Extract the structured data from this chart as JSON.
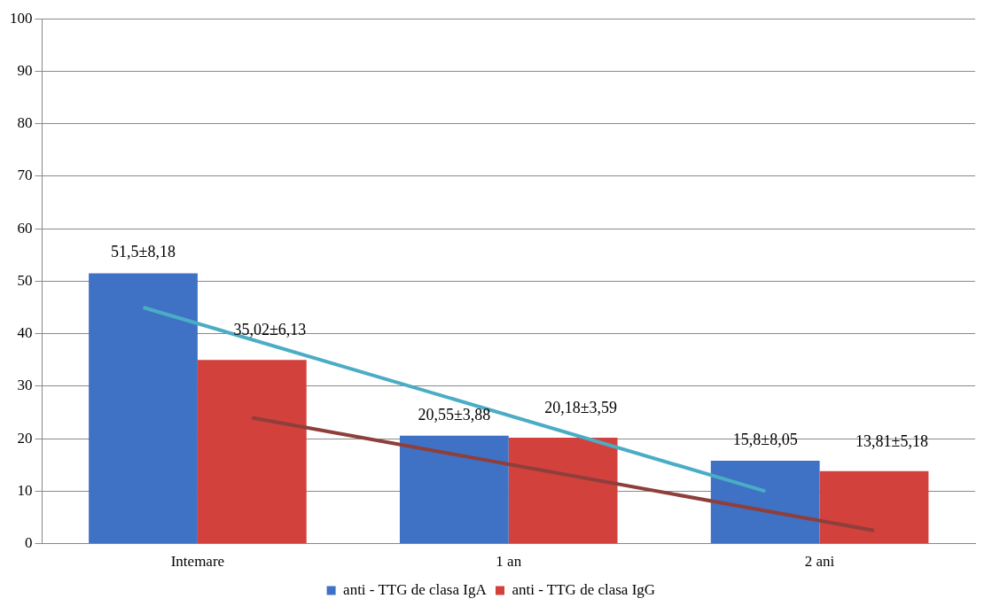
{
  "chart_data": {
    "type": "bar",
    "categories": [
      "Intemare",
      "1 an",
      "2 ani"
    ],
    "series": [
      {
        "name": "anti - TTG de clasa IgA",
        "color": "#3f72c4",
        "values": [
          51.5,
          20.55,
          15.8
        ],
        "value_labels": [
          "51,5±8,18",
          "20,55±3,88",
          "15,8±8,05"
        ]
      },
      {
        "name": "anti - TTG de clasa IgG",
        "color": "#d2413c",
        "values": [
          35.02,
          20.18,
          13.81
        ],
        "value_labels": [
          "35,02±6,13",
          "20,18±3,59",
          "13,81±5,18"
        ]
      },
      {
        "type": "line",
        "color": "#4bacc6",
        "x": [
          "Intemare",
          "2 ani"
        ],
        "values": [
          45,
          10
        ]
      },
      {
        "type": "line",
        "color": "#8e3f3c",
        "x": [
          "Intemare",
          "2 ani"
        ],
        "values": [
          24,
          2.5
        ]
      }
    ],
    "ylim": [
      0,
      100
    ],
    "yticks": [
      0,
      10,
      20,
      30,
      40,
      50,
      60,
      70,
      80,
      90,
      100
    ],
    "grid": "y",
    "legend": "bottom"
  }
}
